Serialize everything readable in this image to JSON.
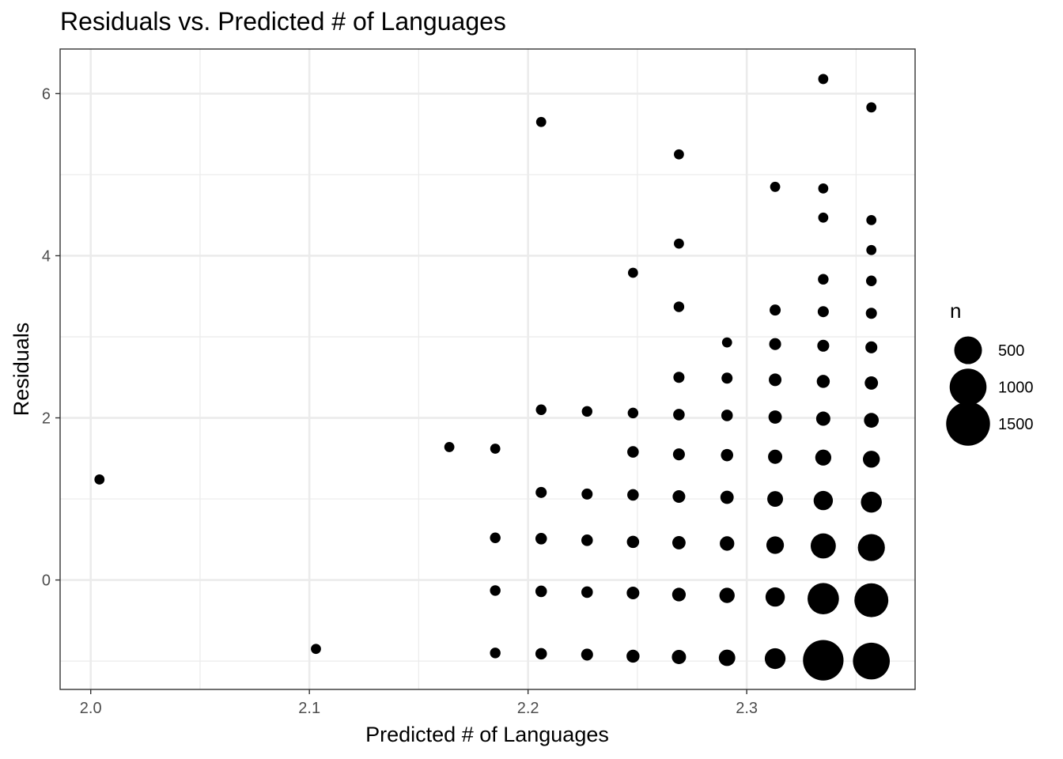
{
  "chart_data": {
    "type": "scatter",
    "title": "Residuals vs. Predicted # of Languages",
    "xlabel": "Predicted # of Languages",
    "ylabel": "Residuals",
    "xlim": [
      1.986,
      2.377
    ],
    "ylim": [
      -1.35,
      6.55
    ],
    "x_ticks": [
      2.0,
      2.1,
      2.2,
      2.3
    ],
    "x_tick_labels": [
      "2.0",
      "2.1",
      "2.2",
      "2.3"
    ],
    "y_ticks": [
      0,
      2,
      4,
      6
    ],
    "y_tick_labels": [
      "0",
      "2",
      "4",
      "6"
    ],
    "grid": true,
    "size_legend": {
      "title": "n",
      "position": "right",
      "entries": [
        {
          "label": "500",
          "value": 500
        },
        {
          "label": "1000",
          "value": 1000
        },
        {
          "label": "1500",
          "value": 1500
        }
      ]
    },
    "points": [
      {
        "x": 2.004,
        "y": 1.24,
        "n": 20
      },
      {
        "x": 2.103,
        "y": -0.85,
        "n": 20
      },
      {
        "x": 2.164,
        "y": 1.64,
        "n": 20
      },
      {
        "x": 2.185,
        "y": 1.62,
        "n": 20
      },
      {
        "x": 2.185,
        "y": 0.52,
        "n": 25
      },
      {
        "x": 2.185,
        "y": -0.13,
        "n": 25
      },
      {
        "x": 2.185,
        "y": -0.9,
        "n": 25
      },
      {
        "x": 2.206,
        "y": 5.65,
        "n": 20
      },
      {
        "x": 2.206,
        "y": 2.1,
        "n": 25
      },
      {
        "x": 2.206,
        "y": 1.08,
        "n": 30
      },
      {
        "x": 2.206,
        "y": 0.51,
        "n": 35
      },
      {
        "x": 2.206,
        "y": -0.14,
        "n": 35
      },
      {
        "x": 2.206,
        "y": -0.91,
        "n": 35
      },
      {
        "x": 2.227,
        "y": 2.08,
        "n": 25
      },
      {
        "x": 2.227,
        "y": 1.06,
        "n": 30
      },
      {
        "x": 2.227,
        "y": 0.49,
        "n": 35
      },
      {
        "x": 2.227,
        "y": -0.15,
        "n": 35
      },
      {
        "x": 2.227,
        "y": -0.92,
        "n": 40
      },
      {
        "x": 2.248,
        "y": 3.79,
        "n": 20
      },
      {
        "x": 2.248,
        "y": 2.06,
        "n": 25
      },
      {
        "x": 2.248,
        "y": 1.58,
        "n": 35
      },
      {
        "x": 2.248,
        "y": 1.05,
        "n": 35
      },
      {
        "x": 2.248,
        "y": 0.47,
        "n": 45
      },
      {
        "x": 2.248,
        "y": -0.16,
        "n": 50
      },
      {
        "x": 2.248,
        "y": -0.94,
        "n": 55
      },
      {
        "x": 2.269,
        "y": 5.25,
        "n": 20
      },
      {
        "x": 2.269,
        "y": 4.15,
        "n": 20
      },
      {
        "x": 2.269,
        "y": 3.37,
        "n": 25
      },
      {
        "x": 2.269,
        "y": 2.5,
        "n": 30
      },
      {
        "x": 2.269,
        "y": 2.04,
        "n": 35
      },
      {
        "x": 2.269,
        "y": 1.55,
        "n": 40
      },
      {
        "x": 2.269,
        "y": 1.03,
        "n": 50
      },
      {
        "x": 2.269,
        "y": 0.46,
        "n": 60
      },
      {
        "x": 2.269,
        "y": -0.18,
        "n": 65
      },
      {
        "x": 2.269,
        "y": -0.95,
        "n": 75
      },
      {
        "x": 2.291,
        "y": 2.93,
        "n": 20
      },
      {
        "x": 2.291,
        "y": 2.49,
        "n": 30
      },
      {
        "x": 2.291,
        "y": 2.03,
        "n": 35
      },
      {
        "x": 2.291,
        "y": 1.54,
        "n": 45
      },
      {
        "x": 2.291,
        "y": 1.02,
        "n": 60
      },
      {
        "x": 2.291,
        "y": 0.45,
        "n": 80
      },
      {
        "x": 2.291,
        "y": -0.19,
        "n": 95
      },
      {
        "x": 2.291,
        "y": -0.96,
        "n": 120
      },
      {
        "x": 2.313,
        "y": 4.85,
        "n": 20
      },
      {
        "x": 2.313,
        "y": 3.33,
        "n": 30
      },
      {
        "x": 2.313,
        "y": 2.91,
        "n": 40
      },
      {
        "x": 2.313,
        "y": 2.47,
        "n": 50
      },
      {
        "x": 2.313,
        "y": 2.01,
        "n": 60
      },
      {
        "x": 2.313,
        "y": 1.52,
        "n": 75
      },
      {
        "x": 2.313,
        "y": 1.0,
        "n": 105
      },
      {
        "x": 2.313,
        "y": 0.43,
        "n": 145
      },
      {
        "x": 2.313,
        "y": -0.21,
        "n": 190
      },
      {
        "x": 2.313,
        "y": -0.97,
        "n": 235
      },
      {
        "x": 2.335,
        "y": 6.18,
        "n": 20
      },
      {
        "x": 2.335,
        "y": 4.83,
        "n": 20
      },
      {
        "x": 2.335,
        "y": 4.47,
        "n": 20
      },
      {
        "x": 2.335,
        "y": 3.71,
        "n": 25
      },
      {
        "x": 2.335,
        "y": 3.31,
        "n": 30
      },
      {
        "x": 2.335,
        "y": 2.89,
        "n": 40
      },
      {
        "x": 2.335,
        "y": 2.45,
        "n": 55
      },
      {
        "x": 2.335,
        "y": 1.99,
        "n": 75
      },
      {
        "x": 2.335,
        "y": 1.51,
        "n": 110
      },
      {
        "x": 2.335,
        "y": 0.98,
        "n": 190
      },
      {
        "x": 2.335,
        "y": 0.42,
        "n": 390
      },
      {
        "x": 2.335,
        "y": -0.23,
        "n": 680
      },
      {
        "x": 2.335,
        "y": -0.99,
        "n": 1250
      },
      {
        "x": 2.357,
        "y": 5.83,
        "n": 20
      },
      {
        "x": 2.357,
        "y": 4.44,
        "n": 20
      },
      {
        "x": 2.357,
        "y": 4.07,
        "n": 20
      },
      {
        "x": 2.357,
        "y": 3.69,
        "n": 25
      },
      {
        "x": 2.357,
        "y": 3.29,
        "n": 30
      },
      {
        "x": 2.357,
        "y": 2.87,
        "n": 40
      },
      {
        "x": 2.357,
        "y": 2.43,
        "n": 60
      },
      {
        "x": 2.357,
        "y": 1.97,
        "n": 85
      },
      {
        "x": 2.357,
        "y": 1.49,
        "n": 130
      },
      {
        "x": 2.357,
        "y": 0.96,
        "n": 240
      },
      {
        "x": 2.357,
        "y": 0.4,
        "n": 470
      },
      {
        "x": 2.357,
        "y": -0.25,
        "n": 820
      },
      {
        "x": 2.357,
        "y": -1.0,
        "n": 1000
      }
    ]
  }
}
